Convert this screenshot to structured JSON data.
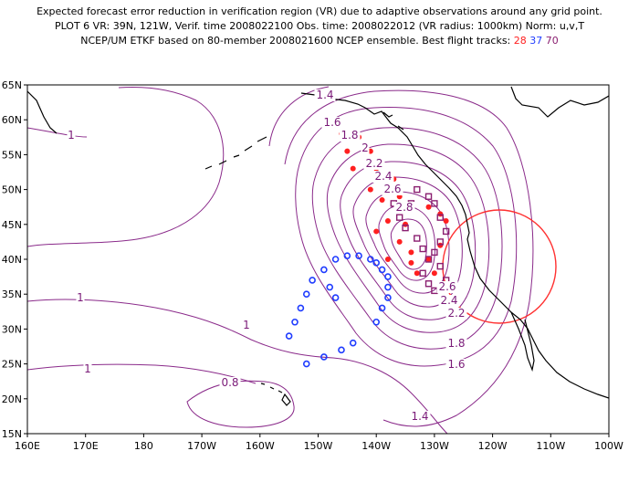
{
  "header": {
    "line1": "Expected forecast error reduction in verification region (VR) due to adaptive observations around any grid point.",
    "line2": "PLOT 6 VR: 39N, 121W, Verif. time 2008022100 Obs. time: 2008022012 (VR radius: 1000km) Norm: u,v,T",
    "line3_prefix": "NCEP/UM ETKF based on 80-member 2008021600 NCEP ensemble.  Best flight tracks:",
    "track_28": "28",
    "track_37": "37",
    "track_70": "70"
  },
  "axes": {
    "lat_labels": [
      "65N",
      "60N",
      "55N",
      "50N",
      "45N",
      "40N",
      "35N",
      "30N",
      "25N",
      "20N",
      "15N"
    ],
    "lon_labels": [
      "160E",
      "170E",
      "180",
      "170W",
      "160W",
      "150W",
      "140W",
      "130W",
      "120W",
      "110W",
      "100W"
    ]
  },
  "contour_labels": [
    "1.4",
    "1.6",
    "1.8",
    "2",
    "2.2",
    "2.4",
    "2.6",
    "2.8",
    "1",
    "1",
    "1",
    "1",
    "0.8",
    "1.4",
    "1.6",
    "1.8",
    "2.2",
    "2.4",
    "2.6"
  ],
  "colors": {
    "track_28": "#ff2020",
    "track_37": "#1f3cff",
    "track_70": "#8a1f70",
    "contour": "#8a2a8a",
    "vr_circle": "#ff3030"
  },
  "tracks": {
    "track_28_points": [
      [
        -146,
        58
      ],
      [
        -143,
        57.5
      ],
      [
        -145,
        55.5
      ],
      [
        -141,
        55.5
      ],
      [
        -144,
        53
      ],
      [
        -140,
        53
      ],
      [
        -141,
        50
      ],
      [
        -137,
        51.5
      ],
      [
        -136,
        49
      ],
      [
        -139,
        48.5
      ],
      [
        -138,
        45.5
      ],
      [
        -135,
        45
      ],
      [
        -140,
        44
      ],
      [
        -136,
        42.5
      ],
      [
        -134,
        41
      ],
      [
        -138,
        40
      ],
      [
        -134,
        39.5
      ],
      [
        -131,
        40
      ],
      [
        -133,
        38
      ],
      [
        -130,
        38
      ],
      [
        -129,
        42
      ],
      [
        -131,
        47.5
      ],
      [
        -128,
        45.5
      ],
      [
        -129,
        46.5
      ]
    ],
    "track_37_points": [
      [
        -147,
        40
      ],
      [
        -145,
        40.5
      ],
      [
        -143,
        40.5
      ],
      [
        -141,
        40
      ],
      [
        -140,
        39.5
      ],
      [
        -139,
        38.5
      ],
      [
        -138,
        37.5
      ],
      [
        -138,
        36
      ],
      [
        -138,
        34.5
      ],
      [
        -139,
        33
      ],
      [
        -140,
        31
      ],
      [
        -144,
        28
      ],
      [
        -146,
        27
      ],
      [
        -149,
        26
      ],
      [
        -152,
        25
      ],
      [
        -155,
        29
      ],
      [
        -154,
        31
      ],
      [
        -153,
        33
      ],
      [
        -152,
        35
      ],
      [
        -151,
        37
      ],
      [
        -149,
        38.5
      ],
      [
        -148,
        36
      ],
      [
        -147,
        34.5
      ]
    ],
    "track_70_points": [
      [
        -133,
        50
      ],
      [
        -131,
        49
      ],
      [
        -130,
        48
      ],
      [
        -129,
        46
      ],
      [
        -134,
        48
      ],
      [
        -137,
        48
      ],
      [
        -136,
        46
      ],
      [
        -135,
        44.5
      ],
      [
        -133,
        43
      ],
      [
        -132,
        41.5
      ],
      [
        -131,
        40
      ],
      [
        -132,
        38
      ],
      [
        -131,
        36.5
      ],
      [
        -130,
        35.5
      ],
      [
        -128,
        37
      ],
      [
        -129,
        39
      ],
      [
        -130,
        41
      ],
      [
        -129,
        42.5
      ],
      [
        -128,
        44
      ]
    ]
  },
  "vr_circle_center": [
    -121,
    39
  ],
  "vr_radius_km": 1000
}
